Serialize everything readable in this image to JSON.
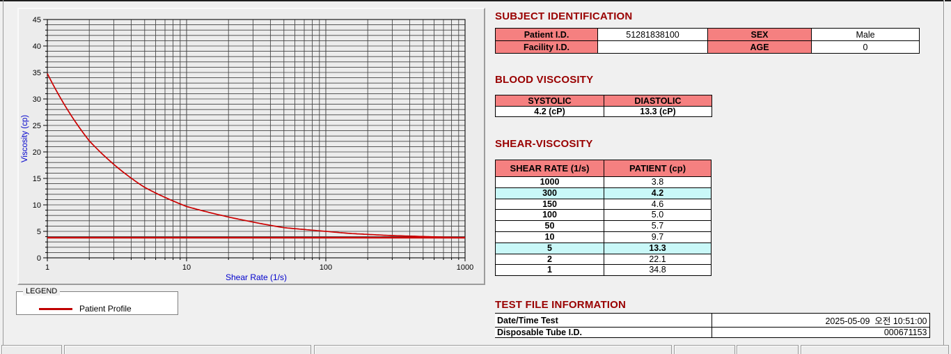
{
  "colors": {
    "window_bg": "#f0f0f0",
    "section_title": "#990000",
    "table_header_bg": "#f58080",
    "highlight_bg": "#c9f8f8",
    "series_red": "#cc0000",
    "axis_label_blue": "#0000cc"
  },
  "chart_data": {
    "type": "line",
    "x_scale": "log",
    "xlabel": "Shear Rate (1/s)",
    "ylabel": "Viscosity (cp)",
    "xlim": [
      1,
      1000
    ],
    "ylim": [
      0,
      45
    ],
    "y_major_step": 5,
    "y_minor_step": 1,
    "x_major_ticks": [
      1,
      10,
      100,
      1000
    ],
    "grid": true,
    "axis_label_color": "#0000cc",
    "series": [
      {
        "name": "Patient Profile",
        "color": "#cc0000",
        "x": [
          1,
          2,
          5,
          10,
          50,
          100,
          150,
          300,
          1000
        ],
        "y": [
          34.8,
          22.1,
          13.3,
          9.7,
          5.7,
          5.0,
          4.6,
          4.2,
          3.8
        ]
      }
    ],
    "reference_line": {
      "y": 3.8,
      "color": "#cc0000",
      "width": 2.4
    }
  },
  "legend": {
    "title": "LEGEND",
    "series_label": "Patient Profile"
  },
  "subject_identification": {
    "title": "SUBJECT IDENTIFICATION",
    "rows": [
      {
        "label1": "Patient I.D.",
        "value1": "51281838100",
        "label2": "SEX",
        "value2": "Male"
      },
      {
        "label1": "Facility I.D.",
        "value1": "",
        "label2": "AGE",
        "value2": "0"
      }
    ]
  },
  "blood_viscosity": {
    "title": "BLOOD VISCOSITY",
    "headers": [
      "SYSTOLIC",
      "DIASTOLIC"
    ],
    "values": [
      "4.2 (cP)",
      "13.3 (cP)"
    ]
  },
  "shear_viscosity": {
    "title": "SHEAR-VISCOSITY",
    "headers": [
      "SHEAR RATE (1/s)",
      "PATIENT (cp)"
    ],
    "rows": [
      {
        "rate": "1000",
        "patient": "3.8",
        "highlight": false
      },
      {
        "rate": "300",
        "patient": "4.2",
        "highlight": true
      },
      {
        "rate": "150",
        "patient": "4.6",
        "highlight": false
      },
      {
        "rate": "100",
        "patient": "5.0",
        "highlight": false
      },
      {
        "rate": "50",
        "patient": "5.7",
        "highlight": false
      },
      {
        "rate": "10",
        "patient": "9.7",
        "highlight": false
      },
      {
        "rate": "5",
        "patient": "13.3",
        "highlight": true
      },
      {
        "rate": "2",
        "patient": "22.1",
        "highlight": false
      },
      {
        "rate": "1",
        "patient": "34.8",
        "highlight": false
      }
    ]
  },
  "test_file_information": {
    "title": "TEST FILE INFORMATION",
    "rows": [
      {
        "label": "Date/Time Test",
        "value": "2025-05-09  오전 10:51:00"
      },
      {
        "label": "Disposable Tube I.D.",
        "value": "000671153"
      }
    ]
  }
}
